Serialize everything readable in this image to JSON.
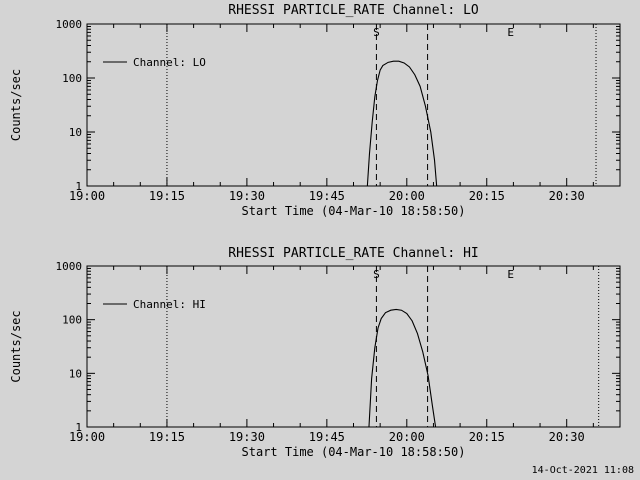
{
  "window": {
    "background": "#d4d4d4",
    "foreground": "#000000",
    "timestamp": "14-Oct-2021 11:08"
  },
  "chart_data": [
    {
      "type": "line",
      "title": "RHESSI PARTICLE_RATE Channel: LO",
      "xlabel": "Start Time (04-Mar-10 18:58:50)",
      "ylabel": "Counts/sec",
      "yscale": "log",
      "ylim": [
        1,
        1000
      ],
      "yticks": [
        1,
        10,
        100,
        1000
      ],
      "ytick_labels": [
        "1",
        "10",
        "100",
        "1000"
      ],
      "xlim_minutes_from_1900": [
        0,
        100
      ],
      "xtick_interval_min": 15,
      "xminor_interval_min": 5,
      "xticks": [
        {
          "t": 0,
          "label": "19:00"
        },
        {
          "t": 15,
          "label": "19:15"
        },
        {
          "t": 30,
          "label": "19:30"
        },
        {
          "t": 45,
          "label": "19:45"
        },
        {
          "t": 60,
          "label": "20:00"
        },
        {
          "t": 75,
          "label": "20:15"
        },
        {
          "t": 90,
          "label": "20:30"
        }
      ],
      "legend": {
        "label": "Channel: LO",
        "position": "upper-left"
      },
      "grid": false,
      "vlines": [
        {
          "t": 15,
          "style": "dotted"
        },
        {
          "t": 95.5,
          "style": "dotted"
        },
        {
          "t": 54.3,
          "style": "dashed"
        },
        {
          "t": 63.9,
          "style": "dashed"
        }
      ],
      "flag_labels": [
        {
          "t": 54.3,
          "text": "S"
        },
        {
          "t": 79.5,
          "text": "E"
        }
      ],
      "series": [
        {
          "name": "Channel: LO",
          "x": [
            52.6,
            53.0,
            53.5,
            54.0,
            54.5,
            55.0,
            55.5,
            56.5,
            57.5,
            58.5,
            59.5,
            60.5,
            61.5,
            62.5,
            63.5,
            64.5,
            65.2,
            65.6
          ],
          "y": [
            1,
            4,
            15,
            45,
            90,
            140,
            170,
            195,
            205,
            205,
            190,
            160,
            115,
            70,
            30,
            10,
            3,
            1
          ]
        }
      ]
    },
    {
      "type": "line",
      "title": "RHESSI PARTICLE_RATE Channel: HI",
      "xlabel": "Start Time (04-Mar-10 18:58:50)",
      "ylabel": "Counts/sec",
      "yscale": "log",
      "ylim": [
        1,
        1000
      ],
      "yticks": [
        1,
        10,
        100,
        1000
      ],
      "ytick_labels": [
        "1",
        "10",
        "100",
        "1000"
      ],
      "xlim_minutes_from_1900": [
        0,
        100
      ],
      "xtick_interval_min": 15,
      "xminor_interval_min": 5,
      "xticks": [
        {
          "t": 0,
          "label": "19:00"
        },
        {
          "t": 15,
          "label": "19:15"
        },
        {
          "t": 30,
          "label": "19:30"
        },
        {
          "t": 45,
          "label": "19:45"
        },
        {
          "t": 60,
          "label": "20:00"
        },
        {
          "t": 75,
          "label": "20:15"
        },
        {
          "t": 90,
          "label": "20:30"
        }
      ],
      "legend": {
        "label": "Channel: HI",
        "position": "upper-left"
      },
      "grid": false,
      "vlines": [
        {
          "t": 15,
          "style": "dotted"
        },
        {
          "t": 96,
          "style": "dotted"
        },
        {
          "t": 54.3,
          "style": "dashed"
        },
        {
          "t": 63.9,
          "style": "dashed"
        }
      ],
      "flag_labels": [
        {
          "t": 54.3,
          "text": "S"
        },
        {
          "t": 79.5,
          "text": "E"
        }
      ],
      "series": [
        {
          "name": "Channel: HI",
          "x": [
            52.9,
            53.4,
            54.0,
            54.6,
            55.2,
            56.0,
            57.0,
            58.0,
            59.0,
            60.0,
            61.0,
            62.0,
            63.0,
            64.0,
            64.8,
            65.4
          ],
          "y": [
            1,
            8,
            30,
            70,
            105,
            135,
            150,
            155,
            150,
            130,
            95,
            55,
            25,
            9,
            2.5,
            1
          ]
        }
      ]
    }
  ]
}
